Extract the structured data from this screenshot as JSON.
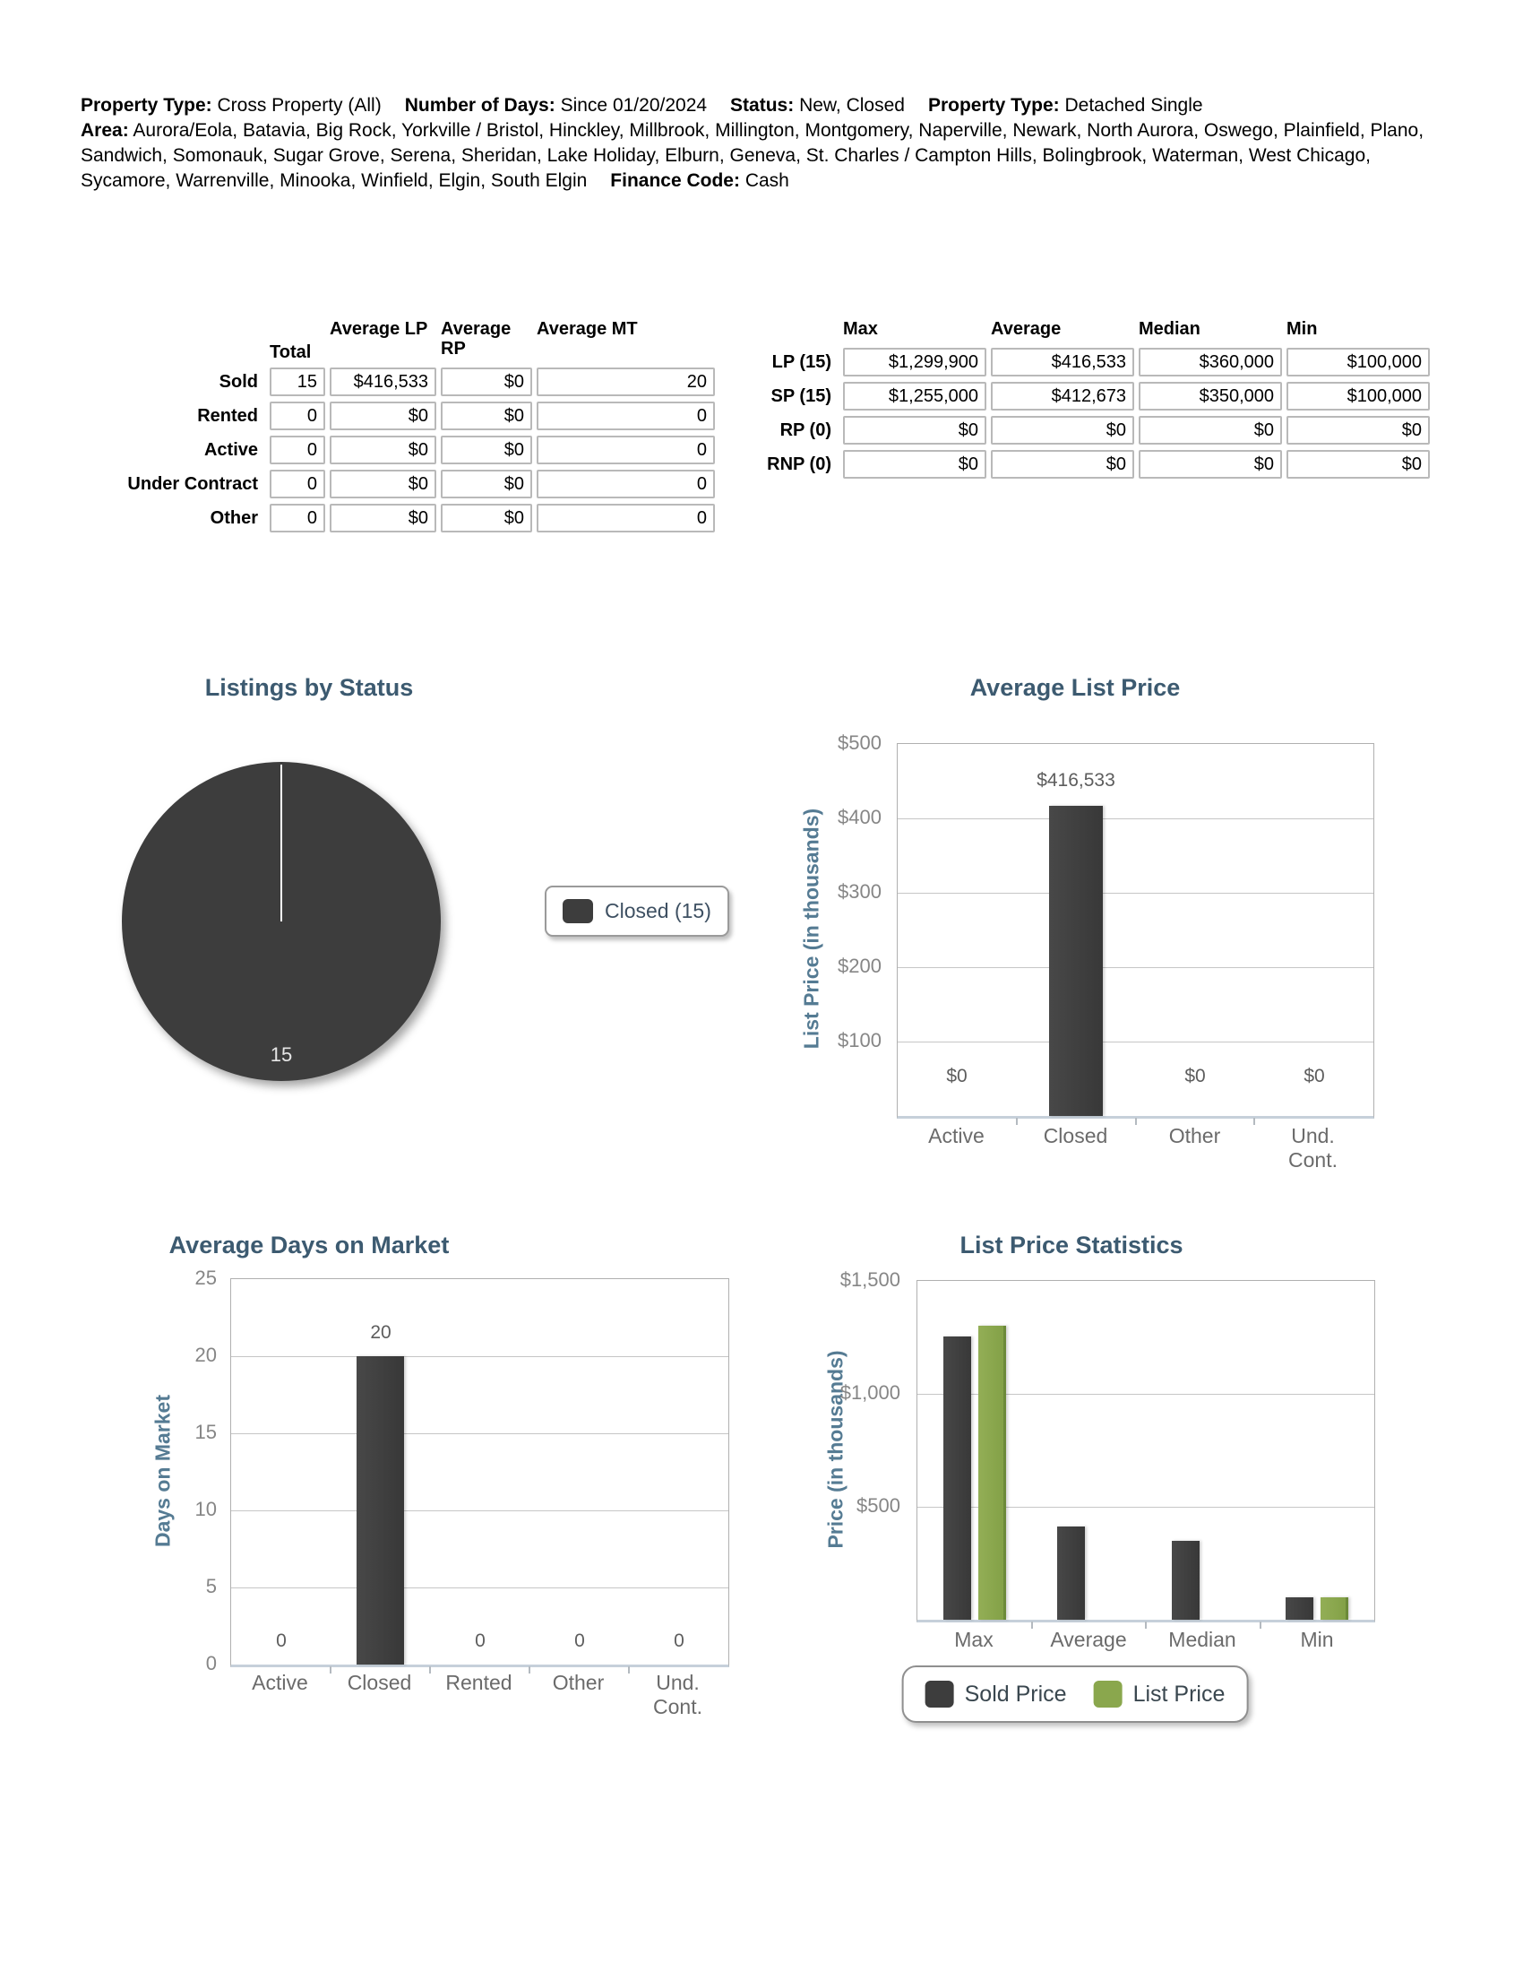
{
  "header": {
    "line1": [
      {
        "label": "Property Type:",
        "value": "Cross Property (All)"
      },
      {
        "label": "Number of Days:",
        "value": "Since 01/20/2024"
      },
      {
        "label": "Status:",
        "value": "New, Closed"
      },
      {
        "label": "Property Type:",
        "value": "Detached Single"
      }
    ],
    "line2": [
      {
        "label": "Area:",
        "value": "Aurora/Eola, Batavia, Big Rock, Yorkville / Bristol, Hinckley, Millbrook, Millington, Montgomery, Naperville, Newark, North Aurora, Oswego, Plainfield, Plano, Sandwich, Somonauk, Sugar Grove, Serena, Sheridan, Lake Holiday, Elburn, Geneva, St. Charles / Campton Hills, Bolingbrook, Waterman, West Chicago, Sycamore, Warrenville, Minooka, Winfield, Elgin, South Elgin"
      },
      {
        "label": "Finance Code:",
        "value": "Cash"
      }
    ]
  },
  "summary_table": {
    "columns": [
      "Total",
      "Average LP",
      "Average RP",
      "Average MT"
    ],
    "rows": [
      {
        "label": "Sold",
        "values": [
          "15",
          "$416,533",
          "$0",
          "20"
        ]
      },
      {
        "label": "Rented",
        "values": [
          "0",
          "$0",
          "$0",
          "0"
        ]
      },
      {
        "label": "Active",
        "values": [
          "0",
          "$0",
          "$0",
          "0"
        ]
      },
      {
        "label": "Under Contract",
        "values": [
          "0",
          "$0",
          "$0",
          "0"
        ]
      },
      {
        "label": "Other",
        "values": [
          "0",
          "$0",
          "$0",
          "0"
        ]
      }
    ]
  },
  "price_table": {
    "columns": [
      "Max",
      "Average",
      "Median",
      "Min"
    ],
    "rows": [
      {
        "label": "LP (15)",
        "values": [
          "$1,299,900",
          "$416,533",
          "$360,000",
          "$100,000"
        ]
      },
      {
        "label": "SP (15)",
        "values": [
          "$1,255,000",
          "$412,673",
          "$350,000",
          "$100,000"
        ]
      },
      {
        "label": "RP (0)",
        "values": [
          "$0",
          "$0",
          "$0",
          "$0"
        ]
      },
      {
        "label": "RNP (0)",
        "values": [
          "$0",
          "$0",
          "$0",
          "$0"
        ]
      }
    ]
  },
  "chart_data": [
    {
      "id": "listings-by-status",
      "type": "pie",
      "title": "Listings by Status",
      "slices": [
        {
          "label": "Closed",
          "value": 15,
          "color": "#3d3d3d"
        }
      ],
      "slice_value_label": "15",
      "legend": [
        {
          "label": "Closed (15)",
          "color": "#3d3d3d"
        }
      ],
      "legend_position": "right"
    },
    {
      "id": "average-list-price",
      "type": "bar",
      "title": "Average List Price",
      "ylabel": "List Price (in thousands)",
      "categories": [
        "Active",
        "Closed",
        "Other",
        "Und.\nCont."
      ],
      "values": [
        0,
        416.533,
        0,
        0
      ],
      "bar_value_labels": [
        "$0",
        "$416,533",
        "$0",
        "$0"
      ],
      "ylim": [
        0,
        500
      ],
      "ytick_step": 100,
      "ytick_labels_top_down": [
        "$500",
        "$400",
        "$300",
        "$200",
        "$100"
      ],
      "grid": true,
      "bar_color": "#3d3d3d"
    },
    {
      "id": "average-days-on-market",
      "type": "bar",
      "title": "Average Days on Market",
      "ylabel": "Days on Market",
      "categories": [
        "Active",
        "Closed",
        "Rented",
        "Other",
        "Und.\nCont."
      ],
      "values": [
        0,
        20,
        0,
        0,
        0
      ],
      "bar_value_labels": [
        "0",
        "20",
        "0",
        "0",
        "0"
      ],
      "ylim": [
        0,
        25
      ],
      "ytick_step": 5,
      "ytick_labels_top_down": [
        "25",
        "20",
        "15",
        "10",
        "5",
        "0"
      ],
      "grid": true,
      "bar_color": "#3d3d3d"
    },
    {
      "id": "list-price-statistics",
      "type": "bar-grouped",
      "title": "List Price Statistics",
      "ylabel": "Price (in thousands)",
      "categories": [
        "Max",
        "Average",
        "Median",
        "Min"
      ],
      "series": [
        {
          "name": "Sold Price",
          "color": "#3d3d3d",
          "values": [
            1255,
            412.673,
            350,
            100
          ],
          "bar_visible": [
            true,
            true,
            true,
            true
          ]
        },
        {
          "name": "List Price",
          "color": "#8aa74d",
          "values": [
            1299.9,
            416.533,
            360,
            100
          ],
          "bar_visible": [
            true,
            false,
            false,
            true
          ]
        }
      ],
      "ylim": [
        0,
        1500
      ],
      "ytick_step": 500,
      "ytick_labels_top_down": [
        "$1,500",
        "$1,000",
        "$500"
      ],
      "grid": true,
      "legend_position": "bottom"
    }
  ],
  "colors": {
    "bar_dark": "#3d3d3d",
    "bar_green": "#8aa74d",
    "chart_title": "#3c5a70",
    "axis_label": "#557b93",
    "tick_label": "#868686",
    "category_label": "#6b6b6b",
    "value_label": "#5d5d5d"
  }
}
